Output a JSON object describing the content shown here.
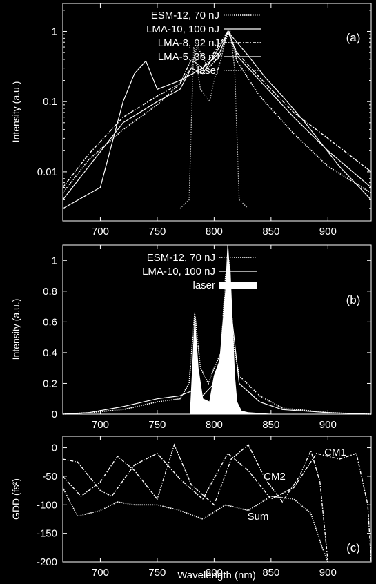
{
  "chart_data": [
    {
      "panel_label": "(a)",
      "type": "line",
      "xlabel": "",
      "ylabel": "Intensity (a.u.)",
      "xlim": [
        667,
        938
      ],
      "ylim": [
        0.002,
        2.5
      ],
      "yscale": "log",
      "grid": false,
      "legend_position": "top-left",
      "xticks": [
        "700",
        "750",
        "800",
        "850",
        "900"
      ],
      "yticks": [
        "0.01",
        "0.1",
        "1"
      ],
      "series": [
        {
          "name": "ESM-12,   70 nJ",
          "style": "dotted",
          "x": [
            667,
            690,
            720,
            750,
            770,
            780,
            785,
            795,
            805,
            813,
            820,
            840,
            870,
            900,
            938
          ],
          "y": [
            0.005,
            0.015,
            0.04,
            0.09,
            0.18,
            0.3,
            0.62,
            0.3,
            0.45,
            1.0,
            0.38,
            0.12,
            0.035,
            0.012,
            0.005
          ]
        },
        {
          "name": "LMA-10, 100 nJ",
          "style": "solid",
          "x": [
            667,
            690,
            720,
            750,
            770,
            780,
            790,
            800,
            813,
            820,
            840,
            870,
            900,
            938
          ],
          "y": [
            0.004,
            0.012,
            0.05,
            0.1,
            0.15,
            0.3,
            0.25,
            0.45,
            1.0,
            0.45,
            0.2,
            0.06,
            0.02,
            0.006
          ]
        },
        {
          "name": "LMA-8,   92 nJ",
          "style": "dash-dot",
          "x": [
            667,
            690,
            720,
            750,
            770,
            780,
            790,
            800,
            812,
            820,
            840,
            870,
            900,
            938
          ],
          "y": [
            0.006,
            0.018,
            0.06,
            0.12,
            0.18,
            0.4,
            0.3,
            0.5,
            1.0,
            0.5,
            0.22,
            0.07,
            0.03,
            0.01
          ]
        },
        {
          "name": "LMA-5,   36 nJ",
          "style": "solid",
          "x": [
            667,
            700,
            720,
            730,
            740,
            750,
            770,
            790,
            805,
            812,
            830,
            845,
            860,
            880,
            910,
            938
          ],
          "y": [
            0.003,
            0.006,
            0.1,
            0.25,
            0.38,
            0.15,
            0.2,
            0.3,
            0.5,
            1.0,
            0.45,
            0.22,
            0.12,
            0.05,
            0.012,
            0.004
          ]
        },
        {
          "name": "laser",
          "style": "dotted-grey",
          "x": [
            770,
            778,
            782,
            788,
            796,
            800,
            806,
            811,
            814,
            818,
            822,
            830
          ],
          "y": [
            0.003,
            0.004,
            0.6,
            0.15,
            0.1,
            0.2,
            0.4,
            0.9,
            1.0,
            0.3,
            0.004,
            0.003
          ]
        }
      ]
    },
    {
      "panel_label": "(b)",
      "type": "line",
      "xlabel": "",
      "ylabel": "Intensity (a.u.)",
      "xlim": [
        667,
        938
      ],
      "ylim": [
        0,
        1.1
      ],
      "grid": false,
      "legend_position": "top-left",
      "xticks": [
        "700",
        "750",
        "800",
        "850",
        "900"
      ],
      "yticks": [
        "0",
        "0.2",
        "0.4",
        "0.6",
        "0.8",
        "1"
      ],
      "series": [
        {
          "name": "ESM-12,   70 nJ",
          "style": "dotted",
          "x": [
            667,
            690,
            720,
            750,
            770,
            778,
            783,
            788,
            795,
            800,
            806,
            810,
            813,
            817,
            822,
            840,
            860,
            900,
            938
          ],
          "y": [
            0.0,
            0.01,
            0.03,
            0.08,
            0.1,
            0.2,
            0.66,
            0.3,
            0.2,
            0.3,
            0.4,
            0.9,
            1.0,
            0.45,
            0.25,
            0.12,
            0.04,
            0.01,
            0.0
          ]
        },
        {
          "name": "LMA-10, 100 nJ",
          "style": "solid",
          "x": [
            667,
            690,
            720,
            750,
            770,
            780,
            790,
            800,
            808,
            812,
            816,
            822,
            840,
            860,
            900,
            938
          ],
          "y": [
            0.0,
            0.01,
            0.05,
            0.1,
            0.12,
            0.15,
            0.12,
            0.2,
            0.45,
            1.1,
            0.6,
            0.2,
            0.08,
            0.03,
            0.01,
            0.0
          ]
        },
        {
          "name": "laser",
          "style": "filled",
          "x": [
            767,
            779,
            781,
            783,
            786,
            790,
            796,
            800,
            805,
            810,
            812,
            814,
            816,
            818,
            820,
            824,
            830,
            850
          ],
          "y": [
            0.0,
            0.0,
            0.3,
            0.62,
            0.3,
            0.1,
            0.08,
            0.25,
            0.35,
            0.8,
            1.0,
            0.95,
            0.6,
            0.25,
            0.08,
            0.02,
            0.01,
            0.0
          ]
        }
      ]
    },
    {
      "panel_label": "(c)",
      "type": "line",
      "xlabel": "Wavelength (nm)",
      "ylabel": "GDD (fs²)",
      "xlim": [
        667,
        938
      ],
      "ylim": [
        -200,
        20
      ],
      "grid": false,
      "xticks": [
        "700",
        "750",
        "800",
        "850",
        "900"
      ],
      "yticks": [
        "-200",
        "-150",
        "-100",
        "-50",
        "0"
      ],
      "annotations": [
        "CM1",
        "CM2",
        "Sum"
      ],
      "series": [
        {
          "name": "CM1",
          "style": "dash-dot",
          "x": [
            667,
            680,
            700,
            710,
            730,
            750,
            770,
            790,
            812,
            830,
            850,
            870,
            890,
            910,
            925,
            935,
            938
          ],
          "y": [
            -20,
            -25,
            -75,
            -85,
            -30,
            -10,
            -55,
            -90,
            -10,
            -40,
            -90,
            -70,
            -10,
            -20,
            -10,
            -100,
            -200
          ]
        },
        {
          "name": "CM2",
          "style": "dash-dot",
          "x": [
            667,
            683,
            700,
            715,
            730,
            750,
            765,
            780,
            800,
            815,
            830,
            845,
            860,
            875,
            885,
            893,
            900
          ],
          "y": [
            -50,
            -85,
            -60,
            -15,
            -40,
            -90,
            5,
            -65,
            -100,
            -20,
            5,
            -55,
            -95,
            -50,
            -5,
            -60,
            -200
          ]
        },
        {
          "name": "Sum",
          "style": "dotted",
          "x": [
            667,
            680,
            700,
            715,
            730,
            750,
            770,
            790,
            810,
            830,
            850,
            870,
            885,
            895,
            900
          ],
          "y": [
            -70,
            -120,
            -110,
            -95,
            -100,
            -100,
            -110,
            -125,
            -100,
            -110,
            -85,
            -90,
            -115,
            -175,
            -200
          ]
        }
      ]
    }
  ]
}
